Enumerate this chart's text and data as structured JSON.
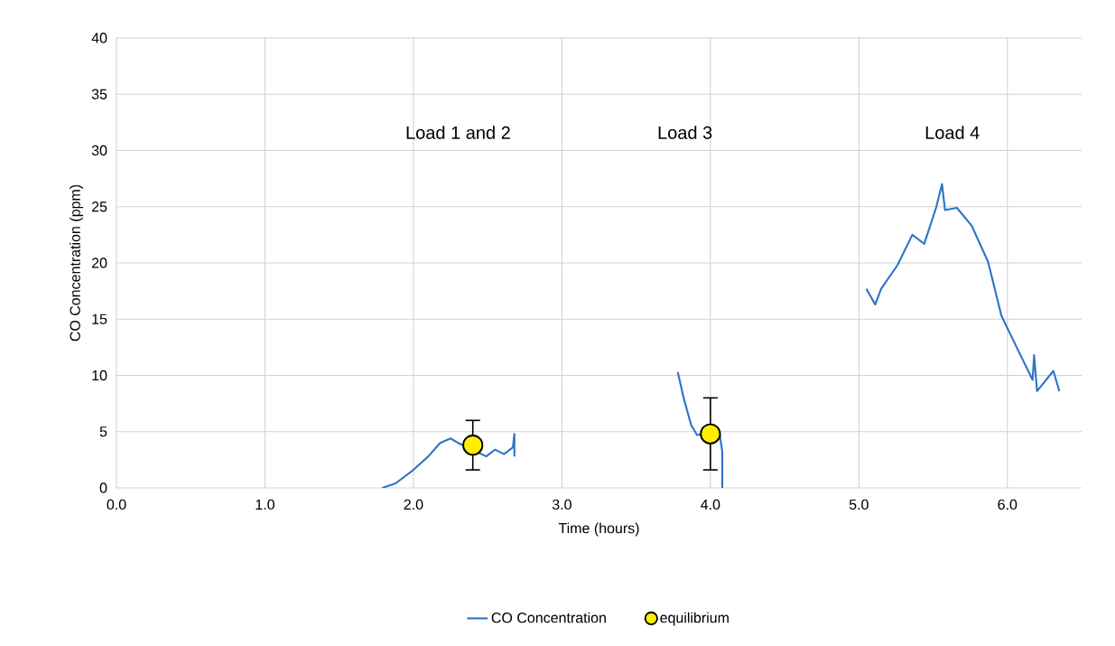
{
  "chart_data": {
    "type": "line",
    "xlabel": "Time (hours)",
    "ylabel": "CO Concentration (ppm)",
    "xlim": [
      0,
      6.5
    ],
    "ylim": [
      0,
      40
    ],
    "xticks": [
      {
        "value": 0,
        "label": "0.0"
      },
      {
        "value": 1,
        "label": "1.0"
      },
      {
        "value": 2,
        "label": "2.0"
      },
      {
        "value": 3,
        "label": "3.0"
      },
      {
        "value": 4,
        "label": "4.0"
      },
      {
        "value": 5,
        "label": "5.0"
      },
      {
        "value": 6,
        "label": "6.0"
      }
    ],
    "yticks": [
      0,
      5,
      10,
      15,
      20,
      25,
      30,
      35,
      40
    ],
    "grid": true,
    "legend": "bottom",
    "series": [
      {
        "name": "CO Concentration",
        "marker": "none",
        "color": "#2e75c6",
        "x": [
          1.79,
          1.88,
          2.0,
          2.1,
          2.18,
          2.25,
          2.3,
          2.49,
          2.55,
          2.61,
          2.67,
          2.68,
          2.68,
          2.7,
          3.78,
          3.82,
          3.87,
          3.91,
          4.06,
          4.08,
          4.08,
          4.5,
          5.05,
          5.11,
          5.15,
          5.26,
          5.36,
          5.44,
          5.52,
          5.56,
          5.58,
          5.66,
          5.76,
          5.87,
          5.96,
          6.07,
          6.17,
          6.18,
          6.2,
          6.31,
          6.35
        ],
        "values": [
          0,
          0.4,
          1.6,
          2.8,
          4.0,
          4.4,
          4.0,
          2.8,
          3.4,
          3.0,
          3.6,
          4.8,
          2.8,
          null,
          10.3,
          8.0,
          5.6,
          4.7,
          5.0,
          3.2,
          0,
          null,
          17.7,
          16.3,
          17.7,
          19.8,
          22.5,
          21.7,
          24.9,
          27.0,
          24.7,
          24.9,
          23.3,
          20.1,
          15.3,
          12.3,
          9.6,
          11.8,
          8.6,
          10.4,
          8.6
        ]
      },
      {
        "name": "equilibrium",
        "type": "scatter",
        "marker": "circle",
        "color": "#ffee00",
        "x": [
          2.4,
          4.0
        ],
        "values": [
          3.8,
          4.8
        ],
        "errors": [
          2.2,
          3.2
        ]
      }
    ],
    "annotations": [
      "Load 1 and 2",
      "Load 3",
      "Load 4"
    ]
  }
}
